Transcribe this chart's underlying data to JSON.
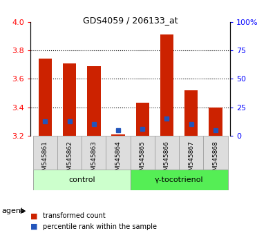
{
  "title": "GDS4059 / 206133_at",
  "samples": [
    "GSM545861",
    "GSM545862",
    "GSM545863",
    "GSM545864",
    "GSM545865",
    "GSM545866",
    "GSM545867",
    "GSM545868"
  ],
  "group_labels": [
    "control",
    "γ-tocotrienol"
  ],
  "red_values": [
    3.74,
    3.71,
    3.69,
    3.21,
    3.43,
    3.91,
    3.52,
    3.4
  ],
  "blue_values": [
    3.3,
    3.3,
    3.28,
    3.24,
    3.25,
    3.32,
    3.28,
    3.24
  ],
  "baseline": 3.2,
  "ylim": [
    3.2,
    4.0
  ],
  "yticks": [
    3.2,
    3.4,
    3.6,
    3.8,
    4.0
  ],
  "right_yticks": [
    0,
    25,
    50,
    75,
    100
  ],
  "right_ylabels": [
    "0",
    "25",
    "50",
    "75",
    "100%"
  ],
  "bar_color": "#cc2200",
  "blue_color": "#2255bb",
  "control_bg": "#ccffcc",
  "treatment_bg": "#55ee55",
  "sample_box_bg": "#dddddd",
  "agent_label": "agent",
  "legend_red": "transformed count",
  "legend_blue": "percentile rank within the sample",
  "bar_width": 0.55,
  "plot_bg": "#ffffff",
  "grid_dotted": [
    3.4,
    3.6,
    3.8
  ],
  "n_control": 4,
  "n_treatment": 4
}
